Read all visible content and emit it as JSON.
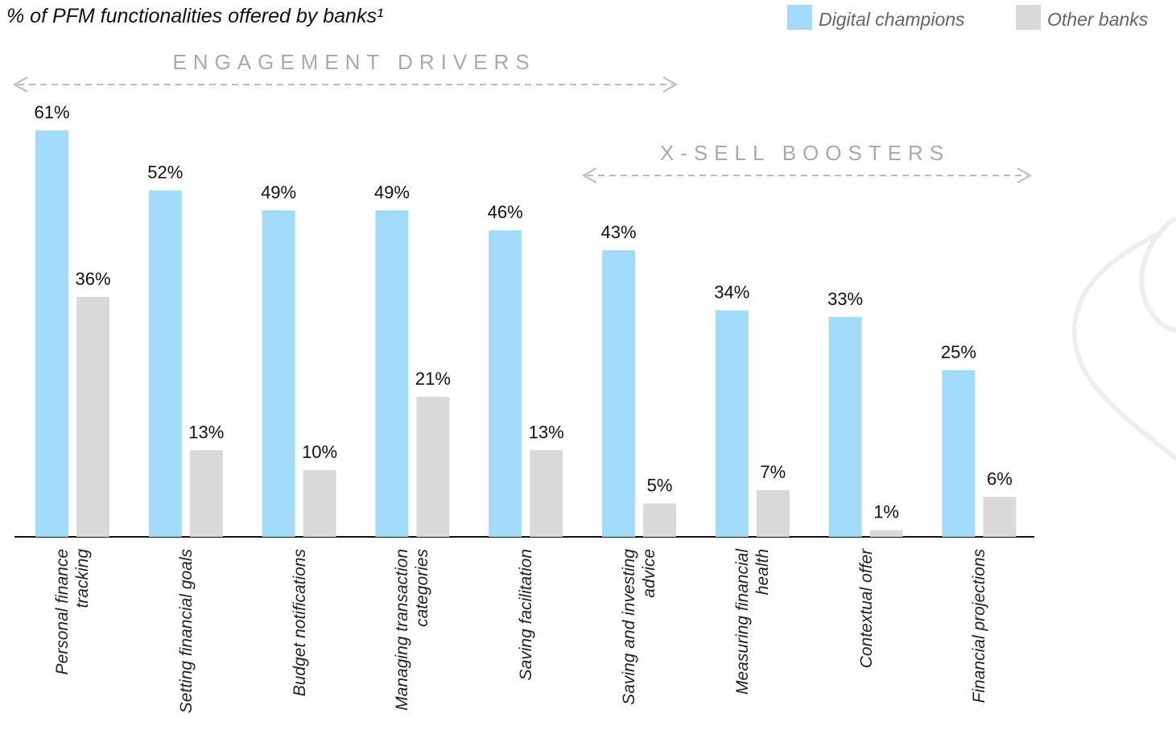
{
  "chart_data": {
    "type": "bar",
    "title": "% of PFM functionalities offered by banks¹",
    "categories": [
      "Personal finance tracking",
      "Setting financial goals",
      "Budget notifications",
      "Managing transaction categories",
      "Saving facilitation",
      "Saving and investing advice",
      "Measuring financial health",
      "Contextual offer",
      "Financial projections"
    ],
    "series": [
      {
        "name": "Digital champions",
        "color": "#a3dcfb",
        "values": [
          61,
          52,
          49,
          49,
          46,
          43,
          34,
          33,
          25
        ],
        "value_labels": [
          "61%",
          "52%",
          "49%",
          "49%",
          "46%",
          "43%",
          "34%",
          "33%",
          "25%"
        ]
      },
      {
        "name": "Other banks",
        "color": "#d9d9d9",
        "values": [
          36,
          13,
          10,
          21,
          13,
          5,
          7,
          1,
          6
        ],
        "value_labels": [
          "36%",
          "13%",
          "10%",
          "21%",
          "13%",
          "5%",
          "7%",
          "1%",
          "6%"
        ]
      }
    ],
    "annotations": [
      "ENGAGEMENT DRIVERS",
      "X-SELL BOOSTERS"
    ]
  }
}
